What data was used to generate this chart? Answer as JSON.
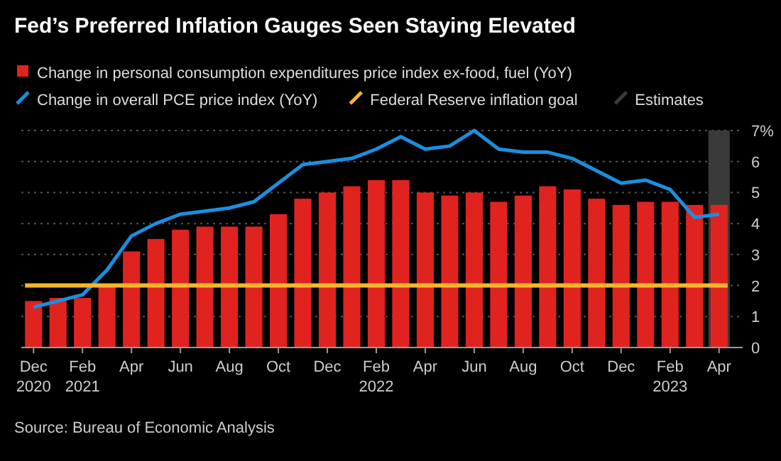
{
  "chart_data": {
    "type": "bar",
    "title": "Fed’s Preferred Inflation Gauges Seen Staying Elevated",
    "categories": [
      "Dec\n2020",
      null,
      "Feb\n2021",
      null,
      "Apr",
      null,
      "Jun",
      null,
      "Aug",
      null,
      "Oct",
      null,
      "Dec",
      null,
      "Feb\n2022",
      null,
      "Apr",
      null,
      "Jun",
      null,
      "Aug",
      null,
      "Oct",
      null,
      "Dec",
      null,
      "Feb\n2023",
      null,
      "Apr"
    ],
    "series": [
      {
        "name": "Estimates",
        "type": "bar",
        "color": "#3a3a3a",
        "values": [
          null,
          null,
          null,
          null,
          null,
          null,
          null,
          null,
          null,
          null,
          null,
          null,
          null,
          null,
          null,
          null,
          null,
          null,
          null,
          null,
          null,
          null,
          null,
          null,
          null,
          null,
          null,
          null,
          7
        ]
      },
      {
        "name": "Change in personal consumption expenditures price index ex-food, fuel (YoY)",
        "color": "#e0231f",
        "values": [
          1.5,
          1.6,
          1.6,
          2.0,
          3.1,
          3.5,
          3.8,
          3.9,
          3.9,
          3.9,
          4.3,
          4.8,
          5.0,
          5.2,
          5.4,
          5.4,
          5.0,
          4.9,
          5.0,
          4.7,
          4.9,
          5.2,
          5.1,
          4.8,
          4.6,
          4.7,
          4.7,
          4.6,
          4.6
        ]
      },
      {
        "name": "Change in overall PCE price index (YoY)",
        "type": "line",
        "color": "#1a8fe0",
        "values": [
          1.3,
          1.5,
          1.7,
          2.5,
          3.6,
          4.0,
          4.3,
          4.4,
          4.5,
          4.7,
          5.3,
          5.9,
          6.0,
          6.1,
          6.4,
          6.8,
          6.4,
          6.5,
          7.0,
          6.4,
          6.3,
          6.3,
          6.1,
          5.7,
          5.3,
          5.4,
          5.1,
          4.2,
          4.3
        ]
      }
    ],
    "ref_lines": [
      {
        "axis": "y",
        "value": 2,
        "label": "Federal Reserve inflation goal",
        "color": "#f5b52e"
      }
    ],
    "ylim": [
      0,
      7
    ],
    "yticks": [
      0,
      1,
      2,
      3,
      4,
      5,
      6,
      {
        "value": 7,
        "label": "7%"
      }
    ],
    "grid": "y",
    "legend": "top left",
    "annotations": [
      "Source: Bureau of Economic Analysis"
    ]
  }
}
